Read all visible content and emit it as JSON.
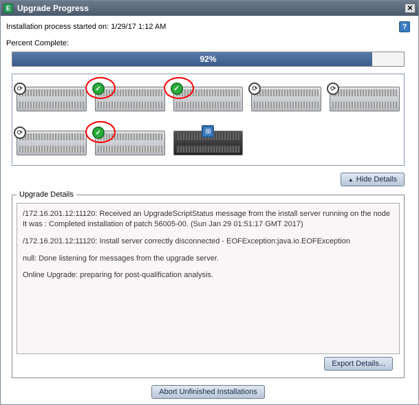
{
  "window": {
    "title": "Upgrade Progress",
    "app_icon_letter": "E"
  },
  "info": {
    "started_label": "Installation process started on:",
    "started_value": "1/29/17 1:12 AM"
  },
  "progress": {
    "label": "Percent Complete:",
    "percent": 92,
    "text": "92%",
    "bar_color": "#3a5a8a",
    "track_color": "#f3f3f3"
  },
  "servers": {
    "items": [
      {
        "status": "spin",
        "annot": false,
        "variant": "light"
      },
      {
        "status": "ok",
        "annot": true,
        "variant": "light"
      },
      {
        "status": "ok",
        "annot": true,
        "variant": "light"
      },
      {
        "status": "spin",
        "annot": false,
        "variant": "light"
      },
      {
        "status": "spin",
        "annot": false,
        "variant": "light"
      },
      {
        "status": "spin",
        "annot": false,
        "variant": "light"
      },
      {
        "status": "ok",
        "annot": true,
        "variant": "light"
      },
      {
        "status": "cluster",
        "annot": false,
        "variant": "dark"
      }
    ],
    "annotate_color": "#ff0000"
  },
  "buttons": {
    "hide_details": "Hide Details",
    "export_details": "Export Details...",
    "abort": "Abort Unfinished Installations"
  },
  "details": {
    "legend": "Upgrade Details",
    "lines": [
      "/172.16.201.12:11120: Received an UpgradeScriptStatus message from the install server running on the node It was : Completed installation of patch 56005-00. (Sun Jan 29 01:51:17 GMT 2017)",
      "/172.16.201.12:11120: Install server correctly disconnected - EOFException:java.io.EOFException",
      "null: Done listening for messages from the upgrade server.",
      "Online Upgrade: preparing for post-qualification analysis."
    ]
  },
  "colors": {
    "titlebar_bg": "#4a5a6b",
    "accent": "#3a7abf",
    "ok_green": "#2aae3a"
  }
}
